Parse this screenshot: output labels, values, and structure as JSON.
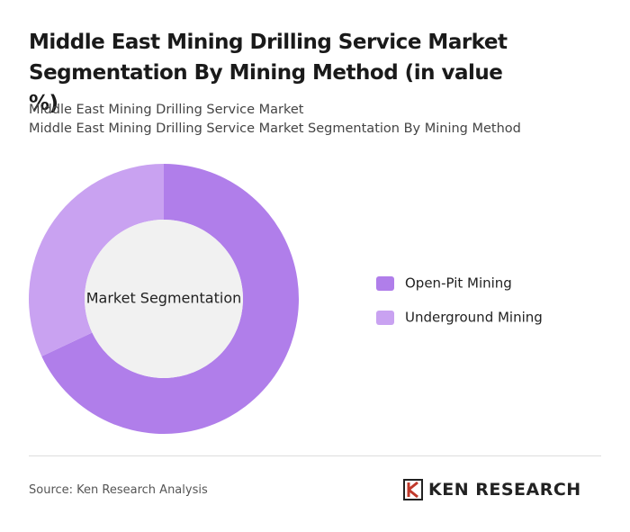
{
  "chart_data": {
    "type": "donut",
    "title": "Middle East Mining Drilling Service Market Segmentation By Mining Method (in value %)",
    "subtitle": [
      "Middle East Mining Drilling Service Market",
      "Middle East Mining Drilling Service Market Segmentation By Mining Method"
    ],
    "center_label": "Market Segmentation",
    "categories": [
      "Open-Pit Mining",
      "Underground Mining"
    ],
    "values": [
      68,
      32
    ],
    "colors": [
      "#b07eea",
      "#c9a2f1"
    ],
    "source": "Source: Ken Research Analysis",
    "logo": "KEN RESEARCH"
  }
}
